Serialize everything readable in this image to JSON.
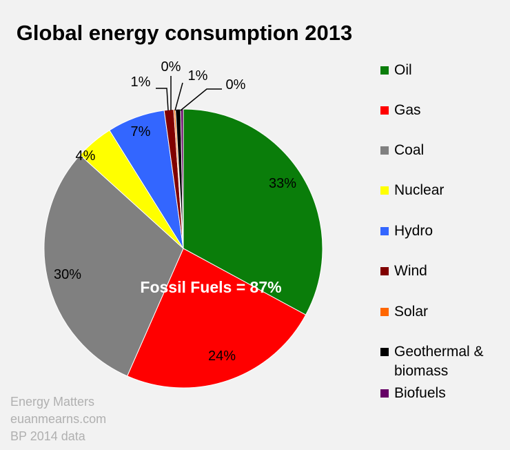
{
  "chart_data": {
    "type": "pie",
    "title": "Global energy consumption 2013",
    "categories": [
      "Oil",
      "Gas",
      "Coal",
      "Nuclear",
      "Hydro",
      "Wind",
      "Solar",
      "Geothermal & biomass",
      "Biofuels"
    ],
    "values": [
      32.9,
      23.7,
      30.1,
      4.4,
      6.7,
      1.1,
      0.2,
      0.6,
      0.3
    ],
    "data_labels": [
      "33%",
      "24%",
      "30%",
      "4%",
      "7%",
      "1%",
      "0%",
      "1%",
      "0%"
    ],
    "colors": [
      "#0a7d0a",
      "#ff0000",
      "#808080",
      "#ffff00",
      "#3366ff",
      "#800000",
      "#ff6600",
      "#000000",
      "#660066"
    ],
    "annotation": "Fossil Fuels = 87%",
    "legend_position": "right",
    "start": "top, clockwise"
  },
  "credits": [
    "Energy Matters",
    "euanmearns.com",
    "BP 2014 data"
  ]
}
